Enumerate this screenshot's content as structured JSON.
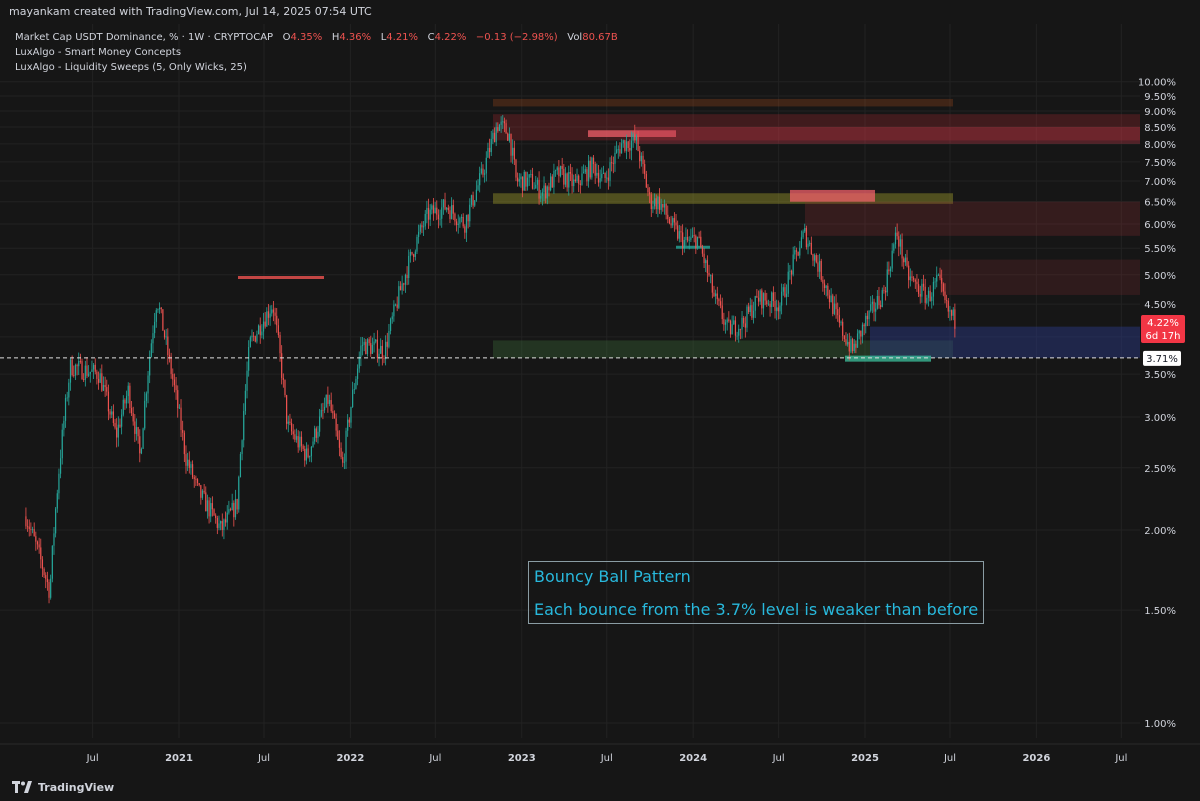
{
  "header": {
    "creator_text": "mayankam created with TradingView.com, Jul 14, 2025 07:54 UTC"
  },
  "legend": {
    "title": "Market Cap USDT Dominance, % · 1W · CRYPTOCAP",
    "ohlc": [
      {
        "label": "O",
        "value": "4.35%"
      },
      {
        "label": "H",
        "value": "4.36%"
      },
      {
        "label": "L",
        "value": "4.21%"
      },
      {
        "label": "C",
        "value": "4.22%"
      }
    ],
    "change": "−0.13 (−2.98%)",
    "vol_label": "Vol",
    "vol_value": "80.67B",
    "indicators": [
      "LuxAlgo - Smart Money Concepts",
      "LuxAlgo - Liquidity Sweeps (5, Only Wicks, 25)"
    ]
  },
  "annotation": {
    "line1": "Bouncy Ball Pattern",
    "line2": "Each bounce from the 3.7% level is weaker than before"
  },
  "price_tags": {
    "current_value": "4.22%",
    "current_time": "6d 17h",
    "level_value": "3.71%"
  },
  "footer": {
    "brand": "TradingView"
  },
  "colors": {
    "background": "#161616",
    "up": "#26a69a",
    "down": "#ef5350",
    "grid": "#222222",
    "annotation_text": "#28b8dc",
    "current_tag": "#f23645"
  },
  "chart_data": {
    "type": "line",
    "title": "Market Cap USDT Dominance, % · 1W · CRYPTOCAP",
    "xlabel": "",
    "ylabel": "",
    "y_scale": "log",
    "ylim": [
      0.9,
      10.5
    ],
    "y_ticks": [
      "10.00%",
      "9.50%",
      "9.00%",
      "8.50%",
      "8.00%",
      "7.50%",
      "7.00%",
      "6.50%",
      "6.00%",
      "5.50%",
      "5.00%",
      "4.50%",
      "4.00%",
      "3.50%",
      "3.00%",
      "2.50%",
      "2.00%",
      "1.50%",
      "1.00%"
    ],
    "x_ticks": [
      "Jul",
      "2021",
      "Jul",
      "2022",
      "Jul",
      "2023",
      "Jul",
      "2024",
      "Jul",
      "2025",
      "Jul",
      "2026",
      "Jul"
    ],
    "x_tick_dates": [
      "2020-07-01",
      "2021-01-01",
      "2021-07-01",
      "2022-01-01",
      "2022-07-01",
      "2023-01-01",
      "2023-07-01",
      "2024-01-01",
      "2024-07-01",
      "2025-01-01",
      "2025-07-01",
      "2026-01-01",
      "2026-07-01"
    ],
    "x_range": [
      "2020-02-10",
      "2026-10-20"
    ],
    "support_level": 3.71,
    "last_close": 4.22,
    "series": [
      {
        "style": "candlestick (weekly, approximated by key points)",
        "x": [
          "2020-02-10",
          "2020-04-01",
          "2020-05-15",
          "2020-07-15",
          "2020-08-20",
          "2020-09-15",
          "2020-10-10",
          "2020-11-15",
          "2020-12-10",
          "2021-01-15",
          "2021-02-10",
          "2021-04-01",
          "2021-05-05",
          "2021-06-01",
          "2021-07-20",
          "2021-08-20",
          "2021-10-01",
          "2021-11-15",
          "2021-12-15",
          "2022-01-25",
          "2022-03-15",
          "2022-04-20",
          "2022-05-20",
          "2022-06-15",
          "2022-07-25",
          "2022-09-01",
          "2022-10-10",
          "2022-11-10",
          "2022-12-05",
          "2022-12-20",
          "2023-01-20",
          "2023-02-15",
          "2023-03-20",
          "2023-04-25",
          "2023-06-01",
          "2023-06-25",
          "2023-08-01",
          "2023-09-01",
          "2023-10-01",
          "2023-10-20",
          "2023-11-20",
          "2023-12-15",
          "2024-01-10",
          "2024-02-15",
          "2024-03-15",
          "2024-04-15",
          "2024-05-20",
          "2024-07-05",
          "2024-08-01",
          "2024-08-25",
          "2024-10-01",
          "2024-11-05",
          "2024-12-05",
          "2025-01-01",
          "2025-02-10",
          "2025-03-10",
          "2025-04-01",
          "2025-04-20",
          "2025-05-15",
          "2025-06-05",
          "2025-06-25",
          "2025-07-14"
        ],
        "y": [
          2.1,
          1.6,
          3.6,
          3.5,
          2.8,
          3.3,
          2.6,
          4.6,
          3.7,
          2.6,
          2.3,
          2.0,
          2.2,
          3.9,
          4.5,
          2.9,
          2.6,
          3.2,
          2.5,
          3.9,
          3.8,
          4.8,
          5.6,
          6.2,
          6.4,
          6.0,
          7.2,
          8.6,
          8.3,
          7.0,
          7.0,
          6.7,
          7.2,
          6.9,
          7.4,
          7.0,
          8.0,
          8.1,
          6.5,
          6.5,
          5.9,
          5.6,
          5.7,
          4.6,
          4.1,
          4.2,
          4.6,
          4.5,
          5.2,
          5.8,
          5.0,
          4.2,
          3.8,
          4.2,
          4.7,
          5.8,
          5.0,
          4.8,
          4.6,
          4.9,
          4.4,
          4.22
        ]
      }
    ],
    "zones": [
      {
        "from": 9.15,
        "to": 9.4,
        "label": ""
      },
      {
        "from": 8.1,
        "to": 8.9,
        "label": ""
      },
      {
        "from": 6.45,
        "to": 6.7,
        "label": ""
      },
      {
        "from": 5.75,
        "to": 6.5,
        "label": ""
      },
      {
        "from": 4.65,
        "to": 5.28,
        "label": ""
      },
      {
        "from": 3.71,
        "to": 3.95,
        "label": ""
      }
    ]
  }
}
